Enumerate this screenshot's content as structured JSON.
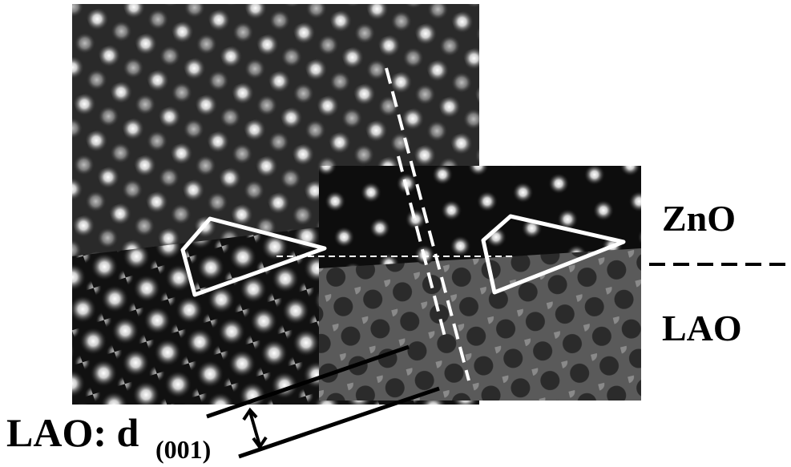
{
  "labels": {
    "top_phase": "ZnO",
    "bottom_phase": "LAO",
    "spacing_label": "LAO: d",
    "spacing_subscript": "(001)"
  }
}
